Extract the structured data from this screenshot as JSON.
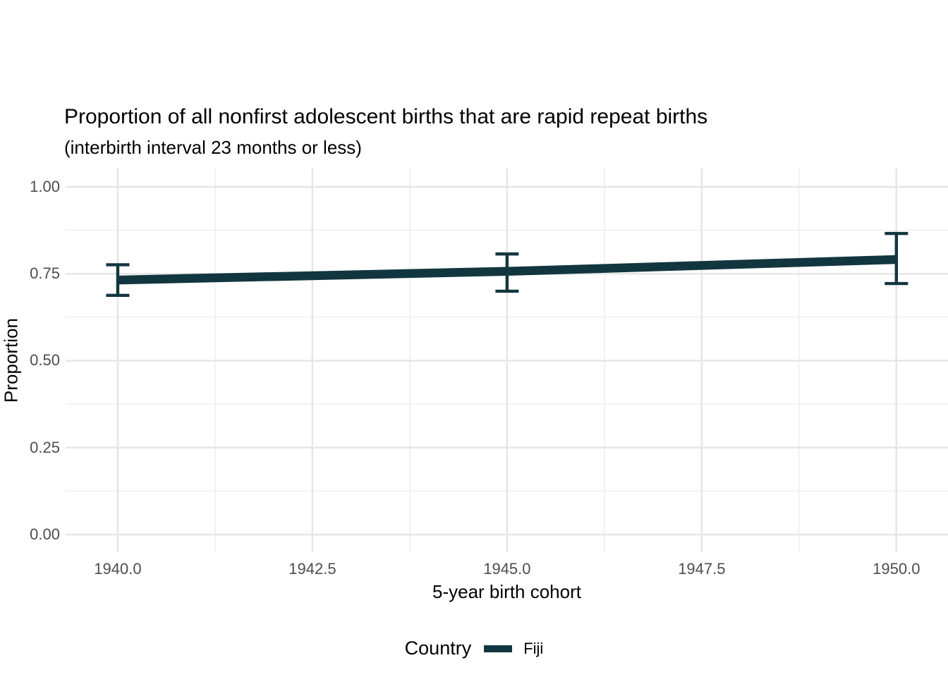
{
  "colors": {
    "background": "#ffffff",
    "line": "#12363f",
    "grid_major": "#e6e6e6",
    "grid_minor": "#efefef",
    "tick_label": "#4d4d4d",
    "text": "#000000"
  },
  "chart_data": {
    "type": "line",
    "title": "Proportion of all nonfirst adolescent births that are rapid repeat births",
    "subtitle": "(interbirth interval 23 months or less)",
    "xlabel": "5-year birth cohort",
    "ylabel": "Proportion",
    "x": [
      1940,
      1945,
      1950
    ],
    "series": [
      {
        "name": "Fiji",
        "values": [
          0.732,
          0.757,
          0.791
        ],
        "ci_lower": [
          0.688,
          0.7,
          0.722
        ],
        "ci_upper": [
          0.776,
          0.807,
          0.866
        ],
        "color": "#12363f"
      }
    ],
    "x_ticks": {
      "values": [
        1940,
        1942.5,
        1945,
        1947.5,
        1950
      ],
      "labels": [
        "1940.0",
        "1942.5",
        "1945.0",
        "1947.5",
        "1950.0"
      ]
    },
    "y_ticks": {
      "values": [
        0,
        0.25,
        0.5,
        0.75,
        1
      ],
      "labels": [
        "0.00",
        "0.25",
        "0.50",
        "0.75",
        "1.00"
      ]
    },
    "xlim": [
      1939.33,
      1950.663
    ],
    "ylim": [
      -0.0507,
      1.0527
    ],
    "grid": {
      "major": true,
      "minor": true
    },
    "error_bars": true,
    "legend": {
      "title": "Country",
      "position": "bottom",
      "entries": [
        {
          "label": "Fiji",
          "color": "#12363f"
        }
      ]
    }
  }
}
